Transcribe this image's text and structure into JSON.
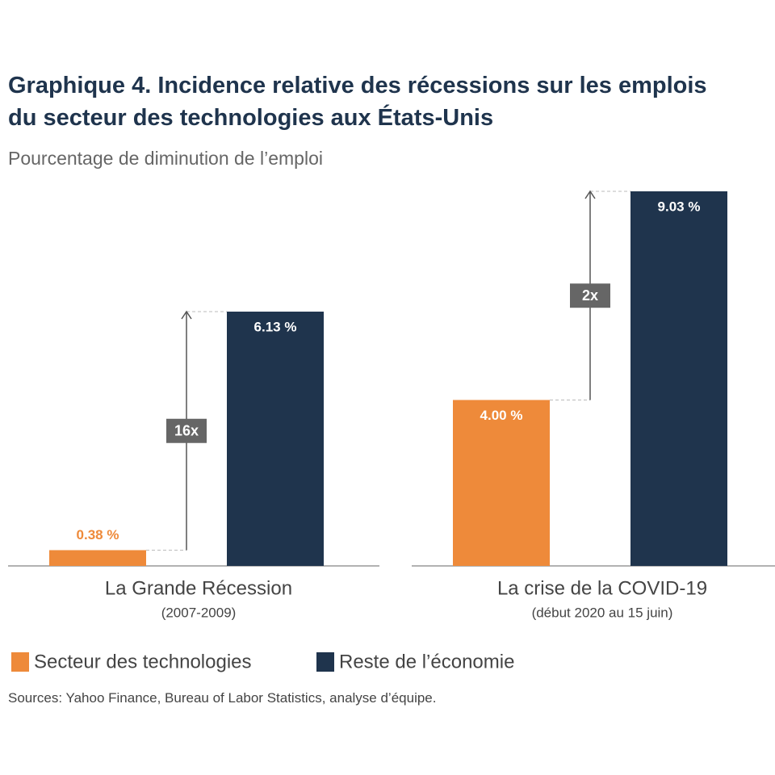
{
  "chart_data": {
    "type": "bar",
    "title": "Graphique 4. Incidence relative des récessions sur les emplois du secteur des technologies aux États-Unis",
    "subtitle": "Pourcentage de diminution de l’emploi",
    "categories": [
      "La Grande Récession",
      "La crise de la COVID-19"
    ],
    "category_notes": [
      "(2007-2009)",
      "(début 2020 au 15 juin)"
    ],
    "series": [
      {
        "name": "Secteur des technologies",
        "color": "#ee8a3a",
        "values": [
          0.38,
          4.0
        ],
        "value_labels": [
          "0.38 %",
          "4.00 %"
        ]
      },
      {
        "name": "Reste de l’économie",
        "color": "#1f344d",
        "values": [
          6.13,
          9.03
        ],
        "value_labels": [
          "6.13 %",
          "9.03 %"
        ]
      }
    ],
    "annotations": [
      "16x",
      "2x"
    ],
    "source": "Sources: Yahoo Finance, Bureau of Labor Statistics, analyse d’équipe."
  }
}
